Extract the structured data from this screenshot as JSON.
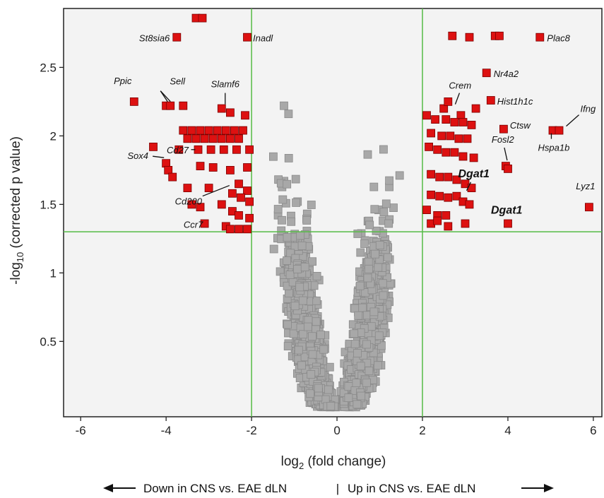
{
  "chart_data": {
    "type": "scatter",
    "title": "",
    "xlabel": "log",
    "xlabel_sub": "2",
    "xlabel_rest": " (fold change)",
    "ylabel": "-log",
    "ylabel_sub": "10",
    "ylabel_rest": " (corrected p value)",
    "xlim": [
      -6.4,
      6.2
    ],
    "ylim": [
      -0.05,
      2.93
    ],
    "x_ticks": [
      -6,
      -4,
      -2,
      0,
      2,
      4,
      6
    ],
    "x_tick_labels": [
      "-6",
      "-4",
      "-2",
      "0",
      "2",
      "4",
      "6"
    ],
    "y_ticks": [
      0.5,
      1,
      1.5,
      2,
      2.5
    ],
    "y_tick_labels": [
      "0.5",
      "1",
      "1.5",
      "2",
      "2.5"
    ],
    "threshold_lines": {
      "x": [
        -2,
        2
      ],
      "y": 1.3
    },
    "grid": false,
    "colors": {
      "significant": "#dd1111",
      "nonsignificant": "#a8a8a8",
      "threshold": "#55bb44",
      "background": "#f3f3f3"
    },
    "direction_left": "Down in CNS vs. EAE dLN",
    "direction_separator": "|",
    "direction_right": "Up in CNS vs. EAE dLN",
    "series": [
      {
        "role": "significant",
        "x": [
          -3.3,
          -3.15,
          -3.75,
          -2.1,
          -4.75,
          -4.0,
          -3.9,
          -3.6,
          -2.7,
          -2.5,
          -2.15,
          -3.6,
          -3.4,
          -3.2,
          -3.0,
          -2.8,
          -2.6,
          -2.4,
          -2.2,
          -3.5,
          -3.3,
          -3.1,
          -2.9,
          -2.7,
          -2.5,
          -2.3,
          -3.7,
          -3.25,
          -2.95,
          -2.65,
          -2.35,
          -2.05,
          -4.3,
          -4.0,
          -3.95,
          -3.85,
          -3.2,
          -2.9,
          -2.1,
          -2.5,
          -2.3,
          -2.1,
          -3.5,
          -3.0,
          -2.45,
          -2.25,
          -2.05,
          -2.7,
          -2.45,
          -2.3,
          -2.05,
          -3.4,
          -3.2,
          -3.1,
          -2.6,
          -2.5,
          -2.3,
          -2.1
        ],
        "y": [
          2.86,
          2.86,
          2.72,
          2.72,
          2.25,
          2.22,
          2.22,
          2.22,
          2.2,
          2.17,
          2.15,
          2.04,
          2.04,
          2.04,
          2.04,
          2.04,
          2.04,
          2.04,
          2.04,
          1.98,
          1.98,
          1.98,
          1.98,
          1.98,
          1.98,
          1.98,
          1.9,
          1.9,
          1.9,
          1.9,
          1.9,
          1.9,
          1.92,
          1.8,
          1.75,
          1.7,
          1.78,
          1.77,
          1.77,
          1.75,
          1.65,
          1.6,
          1.62,
          1.62,
          1.58,
          1.55,
          1.52,
          1.5,
          1.45,
          1.42,
          1.4,
          1.5,
          1.48,
          1.36,
          1.34,
          1.32,
          1.32,
          1.32
        ]
      },
      {
        "role": "significant",
        "x": [
          2.7,
          3.1,
          3.7,
          3.8,
          4.75,
          3.5,
          3.6,
          3.25,
          2.1,
          2.5,
          2.6,
          2.9,
          2.3,
          2.55,
          2.75,
          2.95,
          3.15,
          3.9,
          5.05,
          5.2,
          2.2,
          2.45,
          2.65,
          2.85,
          3.05,
          2.15,
          2.35,
          2.55,
          2.75,
          2.95,
          3.2,
          3.95,
          4.0,
          2.2,
          2.4,
          2.6,
          2.8,
          3.0,
          3.15,
          2.2,
          2.4,
          2.6,
          2.8,
          2.95,
          3.1,
          5.9,
          2.1,
          2.35,
          2.55,
          4.0,
          2.2,
          2.35,
          2.6,
          3.0
        ],
        "y": [
          2.73,
          2.72,
          2.73,
          2.73,
          2.72,
          2.46,
          2.26,
          2.2,
          2.15,
          2.2,
          2.25,
          2.15,
          2.12,
          2.12,
          2.1,
          2.1,
          2.08,
          2.05,
          2.04,
          2.04,
          2.02,
          2.0,
          2.0,
          1.98,
          1.98,
          1.92,
          1.9,
          1.88,
          1.88,
          1.85,
          1.84,
          1.78,
          1.76,
          1.72,
          1.7,
          1.7,
          1.68,
          1.65,
          1.62,
          1.57,
          1.56,
          1.55,
          1.56,
          1.52,
          1.5,
          1.48,
          1.46,
          1.42,
          1.42,
          1.36,
          1.36,
          1.38,
          1.34,
          1.36
        ]
      }
    ],
    "nonsignificant_generator": {
      "count": 2200,
      "seed": 7
    },
    "annotations": [
      {
        "text": "St8sia6",
        "x": -3.75,
        "y": 2.72,
        "bold": false
      },
      {
        "text": "Inadl",
        "x": -2.1,
        "y": 2.72,
        "bold": false
      },
      {
        "text": "Ppic",
        "x": -4.75,
        "y": 2.25,
        "bold": false
      },
      {
        "text": "Sell",
        "x": -3.9,
        "y": 2.22,
        "bold": false
      },
      {
        "text": "Slamf6",
        "x": -2.7,
        "y": 2.2,
        "bold": false
      },
      {
        "text": "Cd27",
        "x": -3.25,
        "y": 1.9,
        "bold": false
      },
      {
        "text": "Sox4",
        "x": -3.95,
        "y": 1.8,
        "bold": false
      },
      {
        "text": "Cd200",
        "x": -2.65,
        "y": 1.7,
        "bold": false
      },
      {
        "text": "Ccr7",
        "x": -3.1,
        "y": 1.36,
        "bold": false
      },
      {
        "text": "Plac8",
        "x": 4.75,
        "y": 2.72,
        "bold": false
      },
      {
        "text": "Nr4a2",
        "x": 3.5,
        "y": 2.46,
        "bold": false
      },
      {
        "text": "Crem",
        "x": 2.9,
        "y": 2.2,
        "bold": false
      },
      {
        "text": "Hist1h1c",
        "x": 3.6,
        "y": 2.26,
        "bold": false
      },
      {
        "text": "Ctsw",
        "x": 3.9,
        "y": 2.1,
        "bold": false
      },
      {
        "text": "Ifng",
        "x": 5.2,
        "y": 2.04,
        "bold": false
      },
      {
        "text": "Hspa1b",
        "x": 5.05,
        "y": 2.04,
        "bold": false
      },
      {
        "text": "Fosl2",
        "x": 3.95,
        "y": 1.78,
        "bold": false
      },
      {
        "text": "Dgat1",
        "x": 3.0,
        "y": 1.57,
        "bold": true
      },
      {
        "text": "Dgat1",
        "x": 4.0,
        "y": 1.36,
        "bold": true
      },
      {
        "text": "Lyz1",
        "x": 5.9,
        "y": 1.48,
        "bold": false
      }
    ]
  }
}
